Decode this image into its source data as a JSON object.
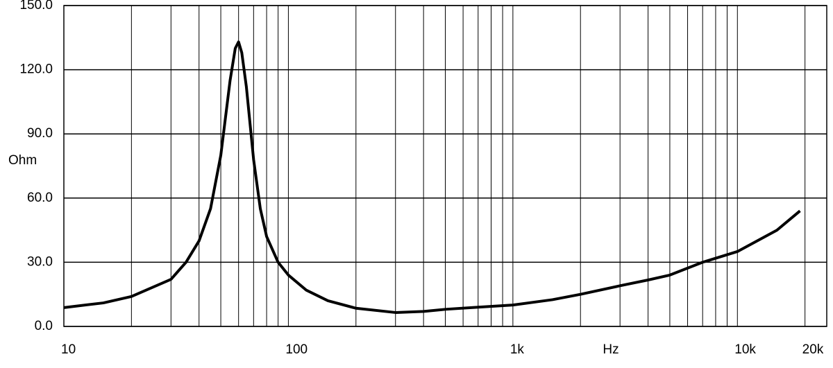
{
  "chart_data": {
    "type": "line",
    "log_x": true,
    "grid": true,
    "x_label": "Hz",
    "y_label": "Ohm",
    "xlim": [
      10,
      25000
    ],
    "ylim": [
      0,
      150
    ],
    "xticks": [
      10,
      100,
      {
        "value": 1000,
        "label": "1k"
      },
      {
        "value": 10000,
        "label": "10k"
      },
      {
        "value": 20000,
        "label": "20k"
      }
    ],
    "x_grid": [
      10,
      20,
      30,
      40,
      50,
      60,
      70,
      80,
      90,
      100,
      200,
      300,
      400,
      500,
      600,
      700,
      800,
      900,
      1000,
      2000,
      3000,
      4000,
      5000,
      6000,
      7000,
      8000,
      9000,
      10000,
      20000
    ],
    "yticks": [
      {
        "value": 0,
        "label": "0.0"
      },
      {
        "value": 30,
        "label": "30.0"
      },
      {
        "value": 60,
        "label": "60.0"
      },
      {
        "value": 90,
        "label": "90.0"
      },
      {
        "value": 120,
        "label": "120.0"
      },
      {
        "value": 150,
        "label": "150.0"
      }
    ],
    "series": [
      {
        "color": "#000000",
        "x": [
          10,
          15,
          20,
          30,
          35,
          40,
          45,
          50,
          55,
          58,
          60,
          62,
          65,
          70,
          75,
          80,
          90,
          100,
          120,
          150,
          200,
          300,
          400,
          500,
          700,
          1000,
          1500,
          2000,
          3000,
          4000,
          5000,
          7000,
          10000,
          15000,
          19000
        ],
        "values": [
          8.8,
          11,
          14,
          22,
          30,
          40,
          55,
          80,
          115,
          130,
          133,
          128,
          112,
          78,
          55,
          42,
          30,
          24,
          17,
          12,
          8.5,
          6.5,
          7,
          8,
          9,
          10,
          12.5,
          15,
          19,
          21.7,
          24,
          30,
          35,
          45,
          54
        ]
      }
    ]
  }
}
